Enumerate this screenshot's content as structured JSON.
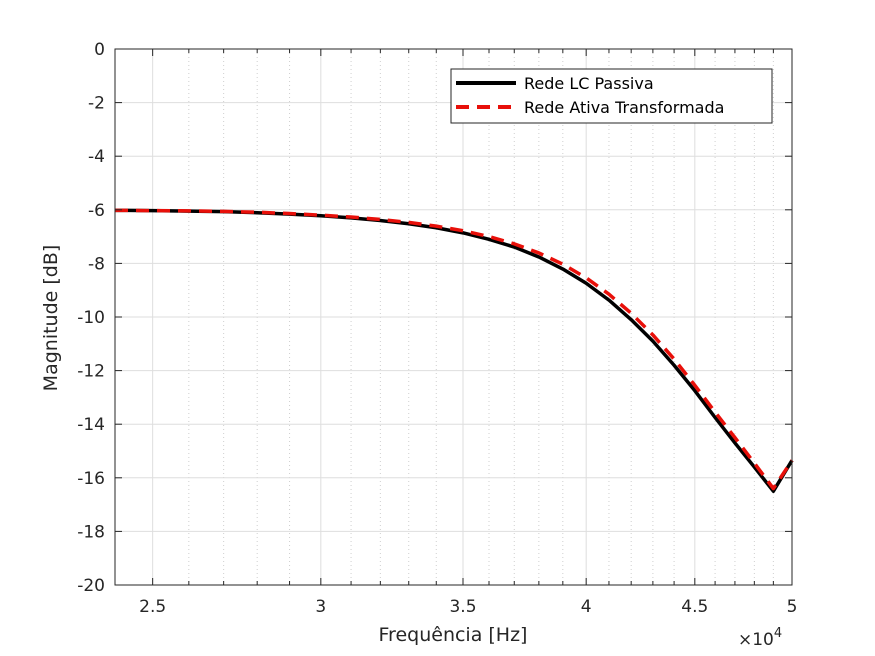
{
  "chart_data": {
    "type": "line",
    "title": "",
    "xlabel": "Frequência [Hz]",
    "ylabel": "Magnitude [dB]",
    "x_scale": "log",
    "x_multiplier_label": "×10",
    "x_multiplier_exponent": "4",
    "xlim": [
      24000,
      50000
    ],
    "ylim": [
      -20,
      0
    ],
    "x_ticks": [
      25000,
      30000,
      35000,
      40000,
      45000,
      50000
    ],
    "x_tick_labels": [
      "2.5",
      "3",
      "3.5",
      "4",
      "4.5",
      "5"
    ],
    "y_ticks": [
      0,
      -2,
      -4,
      -6,
      -8,
      -10,
      -12,
      -14,
      -16,
      -18,
      -20
    ],
    "y_tick_labels": [
      "0",
      "-2",
      "-4",
      "-6",
      "-8",
      "-10",
      "-12",
      "-14",
      "-16",
      "-18",
      "-20"
    ],
    "x_minor_ticks": [
      26000,
      27000,
      28000,
      29000,
      31000,
      32000,
      33000,
      34000,
      36000,
      37000,
      38000,
      39000,
      41000,
      42000,
      43000,
      44000,
      46000,
      47000,
      48000,
      49000
    ],
    "grid": true,
    "legend_position": "top-right",
    "series": [
      {
        "name": "Rede LC Passiva",
        "color": "#000000",
        "dash": "solid",
        "x": [
          24000,
          25000,
          26000,
          27000,
          28000,
          29000,
          30000,
          31000,
          32000,
          33000,
          34000,
          35000,
          36000,
          37000,
          38000,
          39000,
          40000,
          41000,
          42000,
          43000,
          44000,
          45000,
          46000,
          47000,
          48000,
          49000,
          50000
        ],
        "y": [
          -6.02,
          -6.03,
          -6.05,
          -6.07,
          -6.11,
          -6.16,
          -6.22,
          -6.3,
          -6.4,
          -6.52,
          -6.67,
          -6.86,
          -7.1,
          -7.39,
          -7.76,
          -8.21,
          -8.74,
          -9.37,
          -10.1,
          -10.9,
          -11.8,
          -12.75,
          -13.75,
          -14.7,
          -15.6,
          -16.5,
          -15.35
        ]
      },
      {
        "name": "Rede Ativa Transformada",
        "color": "#e8100a",
        "dash": "dashed",
        "x": [
          24000,
          25000,
          26000,
          27000,
          28000,
          29000,
          30000,
          31000,
          32000,
          33000,
          34000,
          35000,
          36000,
          37000,
          38000,
          39000,
          40000,
          41000,
          42000,
          43000,
          44000,
          45000,
          46000,
          47000,
          48000,
          49000,
          50000
        ],
        "y": [
          -6.02,
          -6.03,
          -6.04,
          -6.06,
          -6.09,
          -6.14,
          -6.2,
          -6.27,
          -6.36,
          -6.47,
          -6.61,
          -6.78,
          -7.0,
          -7.27,
          -7.61,
          -8.03,
          -8.54,
          -9.15,
          -9.86,
          -10.67,
          -11.57,
          -12.55,
          -13.55,
          -14.5,
          -15.45,
          -16.4,
          -15.35
        ]
      }
    ]
  }
}
